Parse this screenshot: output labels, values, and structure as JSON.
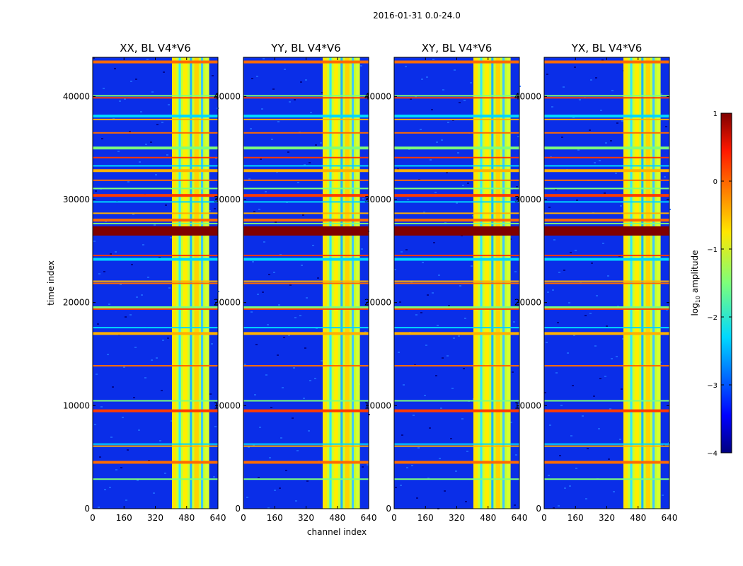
{
  "chart_data": {
    "type": "heatmap",
    "suptitle": "2016-01-31 0.0-24.0",
    "xlabel": "channel index",
    "ylabel": "time index",
    "xlim": [
      0,
      640
    ],
    "ylim": [
      0,
      43800
    ],
    "x_ticks": [
      "0",
      "160",
      "320",
      "480",
      "640"
    ],
    "y_ticks": [
      "0",
      "10000",
      "20000",
      "30000",
      "40000"
    ],
    "y_tick_values": [
      0,
      10000,
      20000,
      30000,
      40000
    ],
    "panels": [
      {
        "title": "XX, BL V4*V6"
      },
      {
        "title": "YY, BL V4*V6"
      },
      {
        "title": "XY, BL V4*V6"
      },
      {
        "title": "YX, BL V4*V6"
      }
    ],
    "colorbar": {
      "label": "log10 amplitude",
      "label_base": "log",
      "label_sub": "10",
      "label_rest": " amplitude",
      "range": [
        -4,
        1
      ],
      "tick_values": [
        1,
        0,
        -1,
        -2,
        -3,
        -4
      ],
      "ticks": [
        "1",
        "0",
        "−1",
        "−2",
        "−3",
        "−4"
      ],
      "colormap": "jet"
    },
    "bright_channel_band": [
      405,
      595
    ],
    "saturated_time_band": [
      26500,
      27400
    ],
    "flagged_rows": [
      43350,
      40000,
      39800,
      38100,
      37700,
      36400,
      35000,
      34000,
      33200,
      32800,
      31800,
      31000,
      30400,
      29700,
      28600,
      28000,
      27600,
      24500,
      24200,
      22000,
      21800,
      19500,
      19300,
      17500,
      17000,
      13800,
      10400,
      9500,
      6200,
      6000,
      4500,
      2800
    ]
  }
}
